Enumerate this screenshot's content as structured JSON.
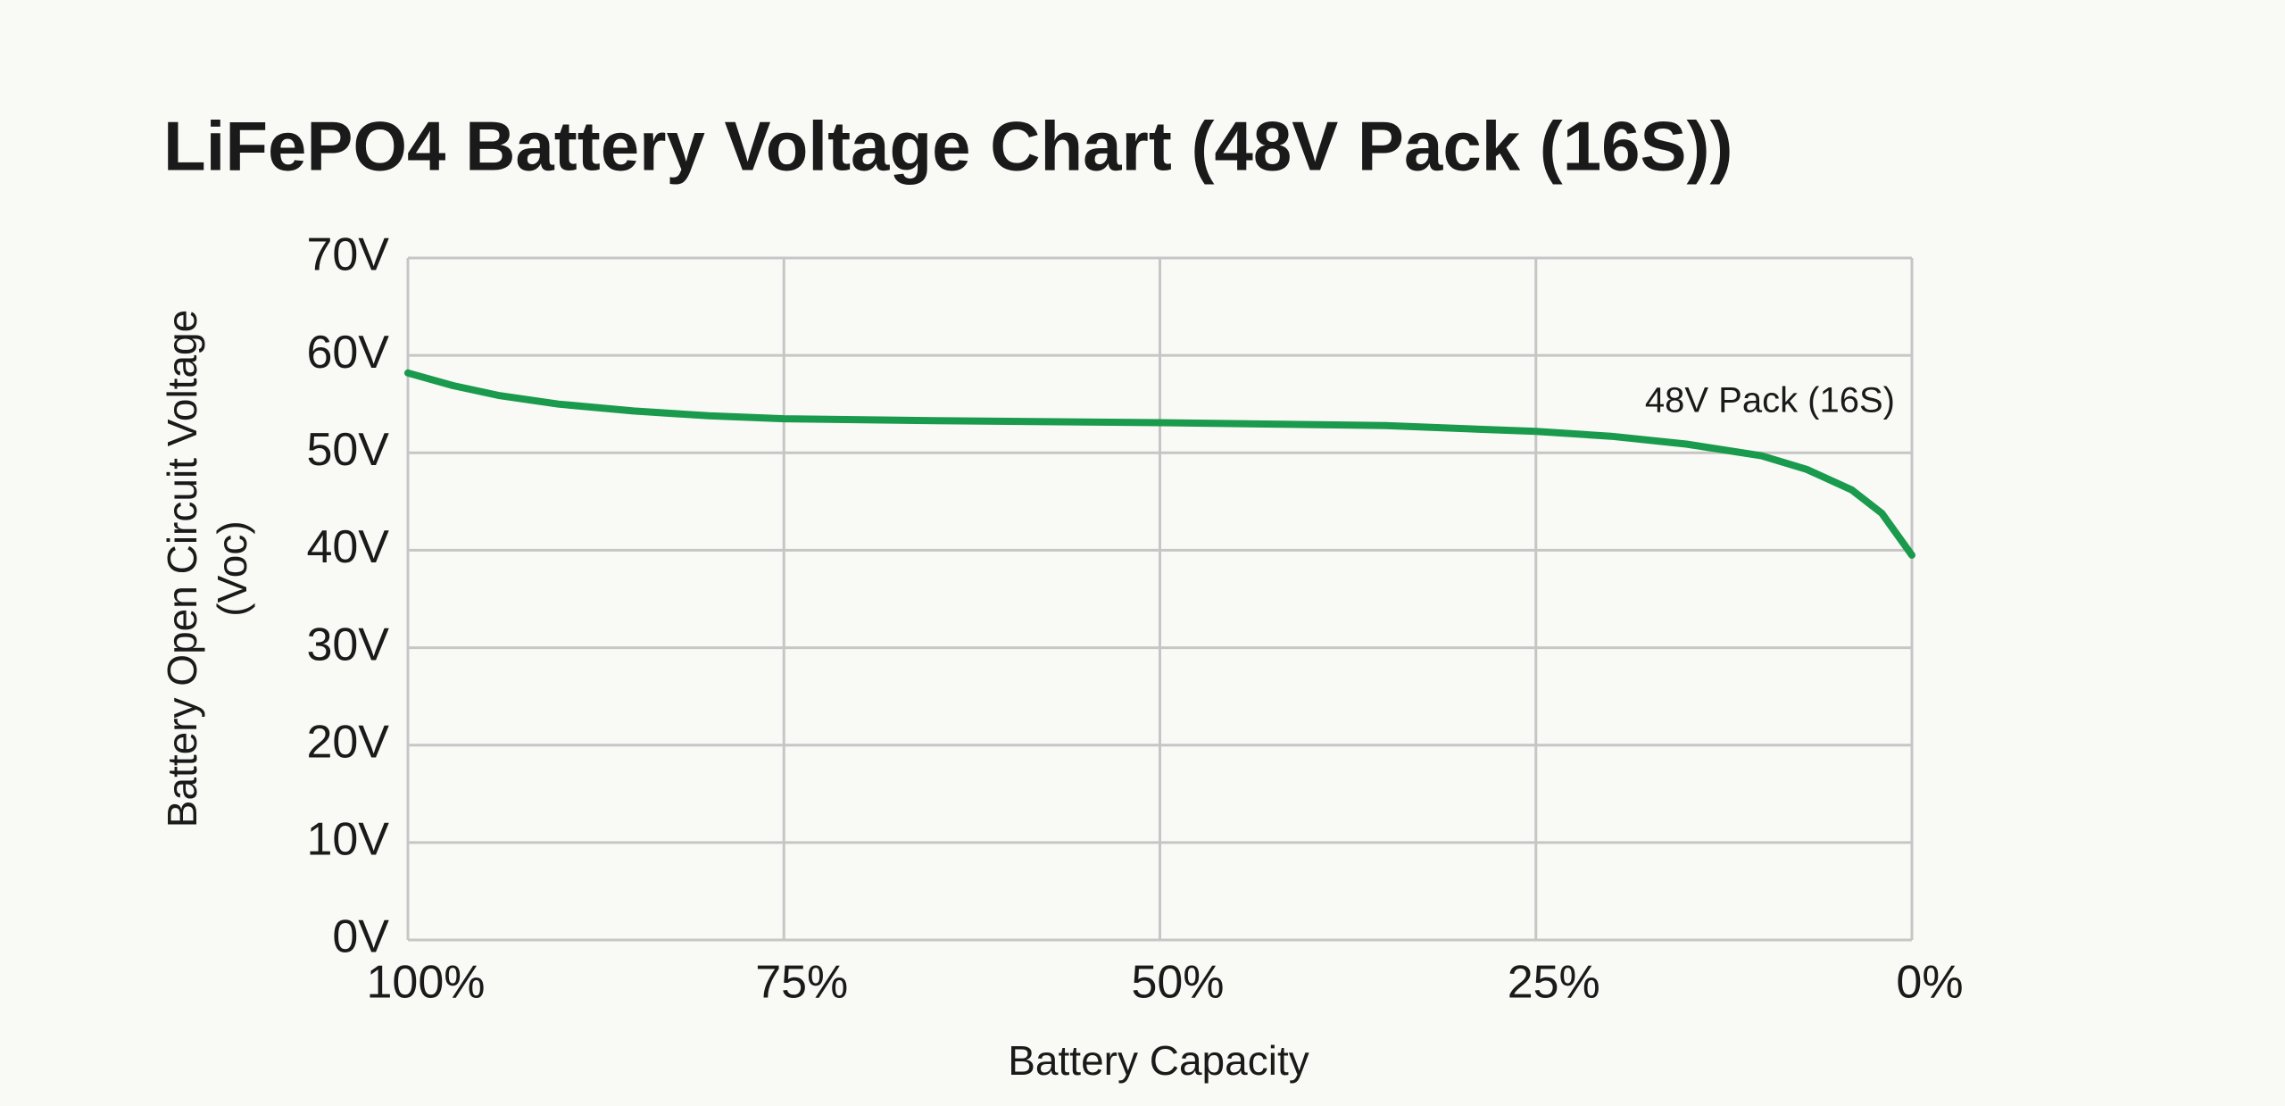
{
  "chart_data": {
    "type": "line",
    "title": "LiFePO4 Battery Voltage Chart (48V Pack (16S))",
    "x_label": "Battery Capacity",
    "y_label": [
      "Battery Open Circuit Voltage",
      "(Voc)"
    ],
    "x": [
      100,
      97,
      94,
      90,
      85,
      80,
      75,
      65,
      50,
      35,
      25,
      20,
      15,
      10,
      7,
      4,
      2,
      0
    ],
    "series": [
      {
        "name": "48V Pack (16S)",
        "color": "#1a9a4c",
        "values": [
          58.2,
          56.9,
          55.9,
          55.0,
          54.3,
          53.8,
          53.5,
          53.3,
          53.1,
          52.8,
          52.2,
          51.7,
          50.9,
          49.7,
          48.3,
          46.2,
          43.8,
          39.5
        ]
      }
    ],
    "xlim": [
      100,
      0
    ],
    "xticks": [
      {
        "value": 100,
        "label": "100%"
      },
      {
        "value": 75,
        "label": "75%"
      },
      {
        "value": 50,
        "label": "50%"
      },
      {
        "value": 25,
        "label": "25%"
      },
      {
        "value": 0,
        "label": "0%"
      }
    ],
    "ylim": [
      0,
      70
    ],
    "yticks": [
      {
        "value": 0,
        "label": "0V"
      },
      {
        "value": 10,
        "label": "10V"
      },
      {
        "value": 20,
        "label": "20V"
      },
      {
        "value": 30,
        "label": "30V"
      },
      {
        "value": 40,
        "label": "40V"
      },
      {
        "value": 50,
        "label": "50V"
      },
      {
        "value": 60,
        "label": "60V"
      },
      {
        "value": 70,
        "label": "70V"
      }
    ],
    "grid": true
  }
}
